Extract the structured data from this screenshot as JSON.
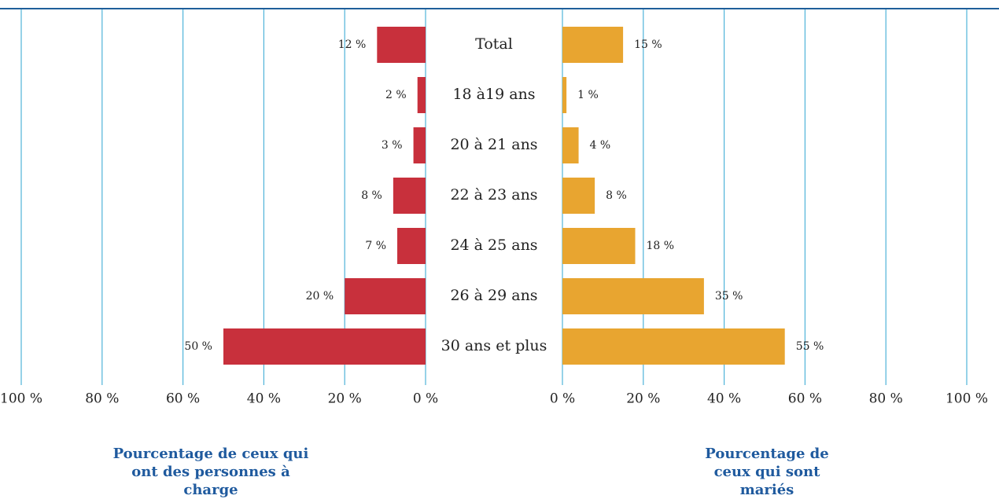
{
  "chart_data": {
    "type": "butterfly",
    "categories": [
      "Total",
      "18 à19 ans",
      "20 à 21 ans",
      "22 à 23 ans",
      "24 à 25 ans",
      "26 à 29 ans",
      "30 ans et plus"
    ],
    "series": [
      {
        "name": "Pourcentage de ceux qui ont des personnes à charge",
        "color": "#c8303c",
        "side": "left",
        "values": [
          12,
          2,
          3,
          8,
          7,
          20,
          50
        ],
        "value_labels": [
          "12 %",
          "2 %",
          "3 %",
          "8 %",
          "7 %",
          "20 %",
          "50 %"
        ]
      },
      {
        "name": "Pourcentage de ceux qui sont mariés",
        "color": "#e8a530",
        "side": "right",
        "values": [
          15,
          1,
          4,
          8,
          18,
          35,
          55
        ],
        "value_labels": [
          "15 %",
          "1 %",
          "4 %",
          "8 %",
          "18 %",
          "35 %",
          "55 %"
        ]
      }
    ],
    "xlim": [
      0,
      100
    ],
    "xticks": [
      {
        "value": 0,
        "label": "0 %"
      },
      {
        "value": 20,
        "label": "20 %"
      },
      {
        "value": 40,
        "label": "40 %"
      },
      {
        "value": 60,
        "label": "60 %"
      },
      {
        "value": 80,
        "label": "80 %"
      },
      {
        "value": 100,
        "label": "100 %"
      }
    ],
    "grid": true
  }
}
